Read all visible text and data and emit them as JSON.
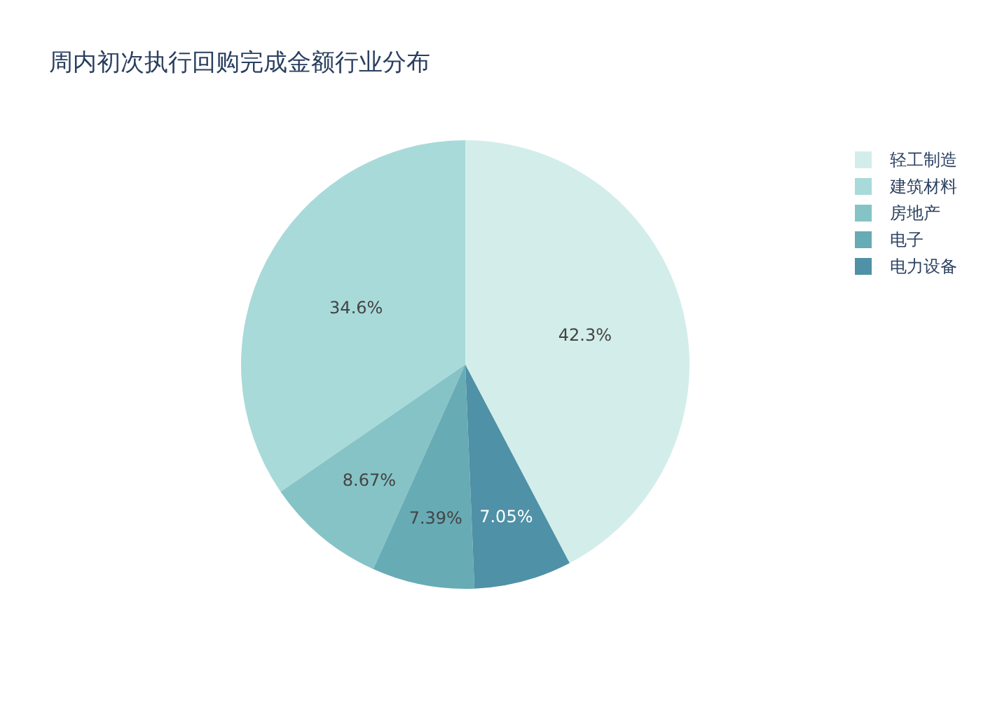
{
  "chart_data": {
    "type": "pie",
    "title": "周内初次执行回购完成金额行业分布",
    "categories": [
      "轻工制造",
      "建筑材料",
      "房地产",
      "电子",
      "电力设备"
    ],
    "values": [
      42.3,
      34.6,
      8.67,
      7.39,
      7.05
    ],
    "colors": [
      "#d3eeea",
      "#a8dad9",
      "#85c3c6",
      "#67abb5",
      "#4f91a6"
    ],
    "value_labels": [
      "42.3%",
      "34.6%",
      "8.67%",
      "7.39%",
      "7.05%"
    ],
    "legend": "top right"
  }
}
